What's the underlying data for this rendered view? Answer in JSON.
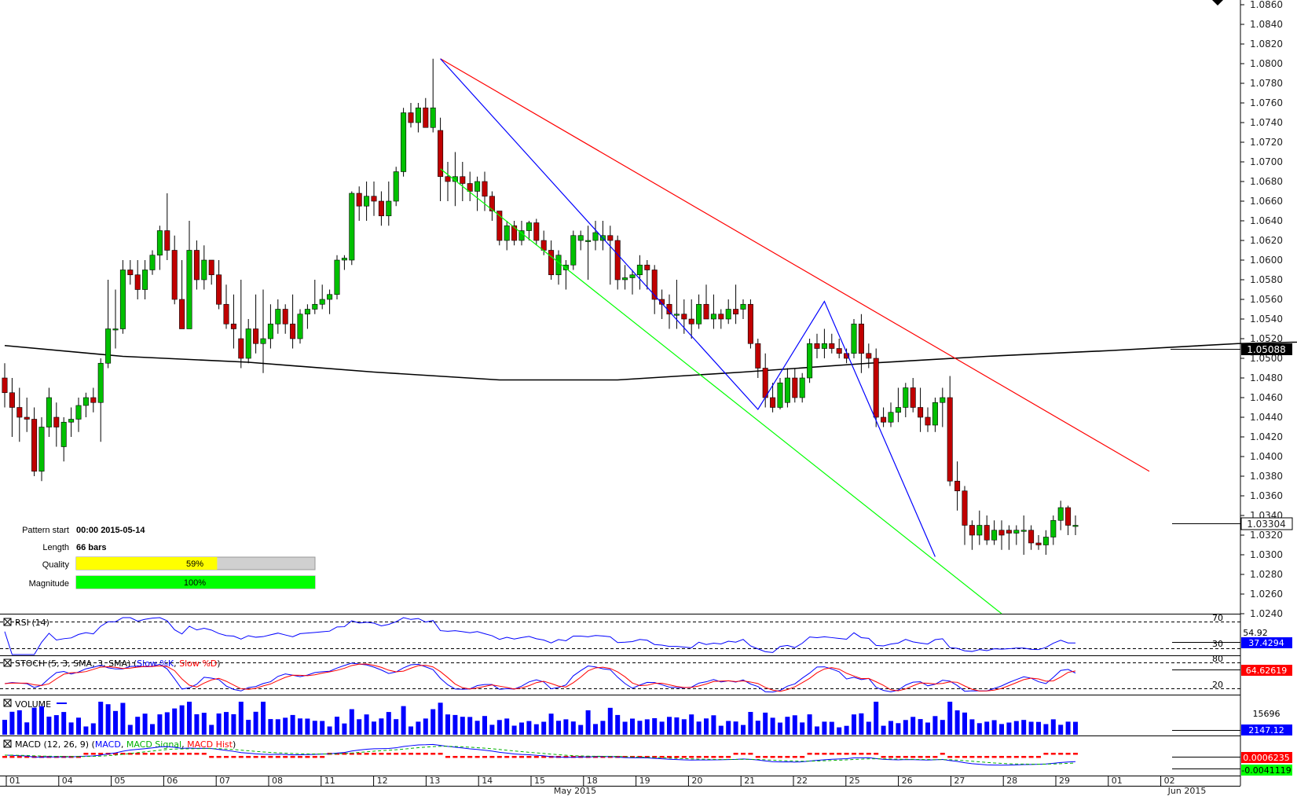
{
  "chart_data": {
    "type": "candlestick",
    "instrument_style": "forex",
    "y_ticks": [
      "1.0860",
      "1.0840",
      "1.0820",
      "1.0800",
      "1.0780",
      "1.0760",
      "1.0740",
      "1.0720",
      "1.0700",
      "1.0680",
      "1.0660",
      "1.0640",
      "1.0620",
      "1.0600",
      "1.0580",
      "1.0560",
      "1.0540",
      "1.0520",
      "1.0500",
      "1.0480",
      "1.0460",
      "1.0440",
      "1.0420",
      "1.0400",
      "1.0380",
      "1.0360",
      "1.0340",
      "1.0320",
      "1.0300",
      "1.0280",
      "1.0260",
      "1.0240"
    ],
    "ylim": [
      1.024,
      1.086
    ],
    "x_labels": [
      "01",
      "04",
      "05",
      "06",
      "07",
      "08",
      "11",
      "12",
      "13",
      "14",
      "15",
      "18",
      "19",
      "20",
      "21",
      "22",
      "25",
      "26",
      "27",
      "28",
      "29",
      "01",
      "02"
    ],
    "month_labels": [
      "May 2015",
      "Jun 2015"
    ],
    "last_price_label": "1.03304",
    "ma_price_label": "1.05088",
    "candles": [
      [
        1.048,
        1.0495,
        1.045,
        1.0465
      ],
      [
        1.0465,
        1.048,
        1.042,
        1.045
      ],
      [
        1.045,
        1.047,
        1.0415,
        1.044
      ],
      [
        1.044,
        1.046,
        1.0425,
        1.0438
      ],
      [
        1.0438,
        1.045,
        1.038,
        1.0385
      ],
      [
        1.0385,
        1.044,
        1.0375,
        1.043
      ],
      [
        1.043,
        1.047,
        1.042,
        1.046
      ],
      [
        1.044,
        1.0455,
        1.041,
        1.043
      ],
      [
        1.041,
        1.044,
        1.0395,
        1.0435
      ],
      [
        1.0435,
        1.045,
        1.042,
        1.0438
      ],
      [
        1.0438,
        1.046,
        1.0425,
        1.0452
      ],
      [
        1.0452,
        1.0465,
        1.044,
        1.046
      ],
      [
        1.046,
        1.047,
        1.0445,
        1.0455
      ],
      [
        1.0455,
        1.05,
        1.0415,
        1.0495
      ],
      [
        1.0495,
        1.058,
        1.049,
        1.053
      ],
      [
        1.053,
        1.057,
        1.051,
        1.053
      ],
      [
        1.053,
        1.06,
        1.0525,
        1.059
      ],
      [
        1.059,
        1.06,
        1.0575,
        1.0585
      ],
      [
        1.0585,
        1.06,
        1.056,
        1.057
      ],
      [
        1.057,
        1.06,
        1.056,
        1.059
      ],
      [
        1.059,
        1.061,
        1.0585,
        1.0605
      ],
      [
        1.0605,
        1.0635,
        1.059,
        1.063
      ],
      [
        1.063,
        1.0668,
        1.06,
        1.061
      ],
      [
        1.061,
        1.0625,
        1.0555,
        1.056
      ],
      [
        1.056,
        1.06,
        1.053,
        1.053
      ],
      [
        1.053,
        1.064,
        1.053,
        1.061
      ],
      [
        1.061,
        1.062,
        1.057,
        1.058
      ],
      [
        1.058,
        1.0615,
        1.057,
        1.06
      ],
      [
        1.06,
        1.06,
        1.0575,
        1.0585
      ],
      [
        1.0585,
        1.06,
        1.055,
        1.0555
      ],
      [
        1.0555,
        1.0575,
        1.053,
        1.0535
      ],
      [
        1.0535,
        1.0565,
        1.051,
        1.053
      ],
      [
        1.052,
        1.058,
        1.049,
        1.05
      ],
      [
        1.05,
        1.054,
        1.0495,
        1.053
      ],
      [
        1.053,
        1.0565,
        1.0505,
        1.0515
      ],
      [
        1.0515,
        1.057,
        1.0485,
        1.052
      ],
      [
        1.052,
        1.0555,
        1.051,
        1.0535
      ],
      [
        1.0535,
        1.056,
        1.0525,
        1.055
      ],
      [
        1.055,
        1.0555,
        1.0525,
        1.0535
      ],
      [
        1.0535,
        1.0565,
        1.051,
        1.052
      ],
      [
        1.052,
        1.055,
        1.0515,
        1.0545
      ],
      [
        1.0545,
        1.0555,
        1.053,
        1.055
      ],
      [
        1.055,
        1.058,
        1.0545,
        1.0555
      ],
      [
        1.0555,
        1.0575,
        1.055,
        1.056
      ],
      [
        1.056,
        1.057,
        1.0545,
        1.0565
      ],
      [
        1.0565,
        1.0605,
        1.056,
        1.06
      ],
      [
        1.06,
        1.0605,
        1.059,
        1.0602
      ],
      [
        1.06,
        1.067,
        1.0595,
        1.0668
      ],
      [
        1.0668,
        1.0675,
        1.064,
        1.0655
      ],
      [
        1.0655,
        1.068,
        1.064,
        1.0665
      ],
      [
        1.0665,
        1.068,
        1.0645,
        1.066
      ],
      [
        1.066,
        1.067,
        1.0635,
        1.0645
      ],
      [
        1.0645,
        1.068,
        1.0635,
        1.066
      ],
      [
        1.066,
        1.0695,
        1.0655,
        1.069
      ],
      [
        1.069,
        1.0755,
        1.0685,
        1.075
      ],
      [
        1.075,
        1.076,
        1.0735,
        1.074
      ],
      [
        1.074,
        1.076,
        1.073,
        1.0755
      ],
      [
        1.0755,
        1.0765,
        1.0735,
        1.0735
      ],
      [
        1.0735,
        1.0805,
        1.073,
        1.0755
      ],
      [
        1.0732,
        1.0745,
        1.066,
        1.0685
      ],
      [
        1.0685,
        1.07,
        1.066,
        1.068
      ],
      [
        1.068,
        1.071,
        1.0655,
        1.0685
      ],
      [
        1.0685,
        1.07,
        1.066,
        1.0678
      ],
      [
        1.0678,
        1.069,
        1.066,
        1.067
      ],
      [
        1.067,
        1.0685,
        1.065,
        1.068
      ],
      [
        1.068,
        1.069,
        1.065,
        1.0665
      ],
      [
        1.0665,
        1.067,
        1.064,
        1.065
      ],
      [
        1.065,
        1.065,
        1.0615,
        1.062
      ],
      [
        1.062,
        1.064,
        1.061,
        1.0635
      ],
      [
        1.0635,
        1.064,
        1.0615,
        1.062
      ],
      [
        1.062,
        1.064,
        1.0615,
        1.063
      ],
      [
        1.063,
        1.064,
        1.062,
        1.0638
      ],
      [
        1.0638,
        1.0642,
        1.0615,
        1.062
      ],
      [
        1.062,
        1.063,
        1.0605,
        1.061
      ],
      [
        1.061,
        1.062,
        1.058,
        1.0585
      ],
      [
        1.0585,
        1.061,
        1.0575,
        1.0605
      ],
      [
        1.059,
        1.06,
        1.057,
        1.0595
      ],
      [
        1.0595,
        1.063,
        1.059,
        1.0625
      ],
      [
        1.062,
        1.063,
        1.061,
        1.0625
      ],
      [
        1.062,
        1.0635,
        1.058,
        1.062
      ],
      [
        1.062,
        1.064,
        1.061,
        1.0628
      ],
      [
        1.062,
        1.064,
        1.061,
        1.0625
      ],
      [
        1.0625,
        1.0635,
        1.0575,
        1.062
      ],
      [
        1.062,
        1.0625,
        1.057,
        1.058
      ],
      [
        1.058,
        1.0595,
        1.057,
        1.0582
      ],
      [
        1.0582,
        1.059,
        1.0565,
        1.0585
      ],
      [
        1.0585,
        1.0605,
        1.057,
        1.0595
      ],
      [
        1.0595,
        1.06,
        1.057,
        1.059
      ],
      [
        1.059,
        1.0595,
        1.0545,
        1.056
      ],
      [
        1.056,
        1.057,
        1.054,
        1.0555
      ],
      [
        1.0555,
        1.0565,
        1.053,
        1.0545
      ],
      [
        1.0545,
        1.058,
        1.053,
        1.0545
      ],
      [
        1.0545,
        1.056,
        1.0525,
        1.054
      ],
      [
        1.054,
        1.056,
        1.052,
        1.0535
      ],
      [
        1.0535,
        1.0565,
        1.053,
        1.0555
      ],
      [
        1.0555,
        1.0575,
        1.054,
        1.054
      ],
      [
        1.054,
        1.0565,
        1.053,
        1.0545
      ],
      [
        1.0545,
        1.055,
        1.053,
        1.054
      ],
      [
        1.054,
        1.056,
        1.0535,
        1.055
      ],
      [
        1.055,
        1.0575,
        1.0535,
        1.0545
      ],
      [
        1.055,
        1.056,
        1.054,
        1.0555
      ],
      [
        1.0555,
        1.056,
        1.051,
        1.0515
      ],
      [
        1.0515,
        1.052,
        1.048,
        1.049
      ],
      [
        1.049,
        1.0505,
        1.045,
        1.046
      ],
      [
        1.046,
        1.0475,
        1.0445,
        1.045
      ],
      [
        1.045,
        1.048,
        1.0448,
        1.0475
      ],
      [
        1.0455,
        1.049,
        1.045,
        1.048
      ],
      [
        1.048,
        1.049,
        1.0455,
        1.046
      ],
      [
        1.046,
        1.0485,
        1.0455,
        1.048
      ],
      [
        1.048,
        1.052,
        1.0475,
        1.0515
      ],
      [
        1.0515,
        1.0525,
        1.05,
        1.051
      ],
      [
        1.051,
        1.053,
        1.05,
        1.0515
      ],
      [
        1.0515,
        1.0525,
        1.0505,
        1.051
      ],
      [
        1.051,
        1.052,
        1.05,
        1.0505
      ],
      [
        1.0505,
        1.051,
        1.0495,
        1.05
      ],
      [
        1.0505,
        1.054,
        1.05,
        1.0535
      ],
      [
        1.0535,
        1.0545,
        1.0485,
        1.0505
      ],
      [
        1.0505,
        1.0515,
        1.049,
        1.05
      ],
      [
        1.05,
        1.051,
        1.043,
        1.044
      ],
      [
        1.044,
        1.045,
        1.043,
        1.0435
      ],
      [
        1.0435,
        1.0455,
        1.043,
        1.0445
      ],
      [
        1.0445,
        1.047,
        1.0435,
        1.045
      ],
      [
        1.045,
        1.0475,
        1.044,
        1.047
      ],
      [
        1.047,
        1.048,
        1.0445,
        1.045
      ],
      [
        1.045,
        1.047,
        1.0425,
        1.044
      ],
      [
        1.044,
        1.045,
        1.0425,
        1.0432
      ],
      [
        1.0432,
        1.046,
        1.0425,
        1.0455
      ],
      [
        1.0455,
        1.047,
        1.043,
        1.046
      ],
      [
        1.046,
        1.0482,
        1.037,
        1.0375
      ],
      [
        1.0375,
        1.0395,
        1.0345,
        1.0365
      ],
      [
        1.0365,
        1.037,
        1.031,
        1.033
      ],
      [
        1.033,
        1.0335,
        1.0305,
        1.032
      ],
      [
        1.032,
        1.0345,
        1.031,
        1.033
      ],
      [
        1.033,
        1.034,
        1.031,
        1.0315
      ],
      [
        1.0315,
        1.0335,
        1.031,
        1.0325
      ],
      [
        1.0325,
        1.0335,
        1.0305,
        1.032
      ],
      [
        1.0325,
        1.033,
        1.0305,
        1.0322
      ],
      [
        1.0322,
        1.033,
        1.031,
        1.0325
      ],
      [
        1.0325,
        1.034,
        1.03,
        1.0325
      ],
      [
        1.0325,
        1.033,
        1.0305,
        1.0312
      ],
      [
        1.0312,
        1.032,
        1.0305,
        1.031
      ],
      [
        1.031,
        1.0325,
        1.03,
        1.0318
      ],
      [
        1.0318,
        1.034,
        1.031,
        1.0335
      ],
      [
        1.0335,
        1.0355,
        1.0325,
        1.0348
      ],
      [
        1.0348,
        1.035,
        1.032,
        1.033
      ],
      [
        1.033,
        1.034,
        1.032,
        1.033
      ]
    ],
    "sma": [
      [
        0,
        1.0513
      ],
      [
        16,
        1.0502
      ],
      [
        33,
        1.0496
      ],
      [
        50,
        1.0486
      ],
      [
        67,
        1.0478
      ],
      [
        83,
        1.0478
      ],
      [
        100,
        1.0486
      ],
      [
        117,
        1.0495
      ],
      [
        133,
        1.0502
      ],
      [
        150,
        1.0508
      ],
      [
        167,
        1.0515
      ],
      [
        183,
        1.0518
      ],
      [
        200,
        1.052
      ],
      [
        217,
        1.0522
      ],
      [
        233,
        1.0522
      ],
      [
        250,
        1.0521
      ],
      [
        267,
        1.0519
      ],
      [
        283,
        1.0516
      ],
      [
        300,
        1.0514
      ]
    ],
    "pattern_lines": {
      "upper": {
        "color": "#ff0000",
        "from": [
          59,
          1.0805
        ],
        "to": [
          155,
          1.0385
        ]
      },
      "lower": {
        "color": "#00ff00",
        "from": [
          59,
          1.0693
        ],
        "to": [
          135,
          1.024
        ]
      },
      "zigzag": {
        "color": "#0000ff",
        "points": [
          [
            59,
            1.0805
          ],
          [
            102,
            1.0448
          ],
          [
            111,
            1.0558
          ],
          [
            126,
            1.0298
          ]
        ]
      }
    },
    "pattern_info": {
      "labels": [
        "Pattern start",
        "Length",
        "Quality",
        "Magnitude"
      ],
      "pattern_start": "00:00 2015-05-14",
      "length": "66 bars",
      "quality_pct": 59,
      "quality_text": "59%",
      "magnitude_pct": 100,
      "magnitude_text": "100%"
    },
    "indicators": {
      "rsi": {
        "title": "RSI (14)",
        "level_high": "70",
        "level_low": "30",
        "mid_label": "54.92",
        "value_label": "37.4294",
        "color": "#0000ff"
      },
      "stoch": {
        "title": "STOCH (5, 3, SMA, 3, SMA)",
        "k_label": "Slow %K",
        "d_label": "Slow %D",
        "level_high": "80",
        "level_low": "20",
        "value_label": "64.62619",
        "k_color": "#0000ff",
        "d_color": "#ff0000"
      },
      "volume": {
        "title": "VOLUME",
        "max_label": "15696",
        "value_label": "2147.12",
        "color": "#0000ff"
      },
      "macd": {
        "title": "MACD (12, 26, 9)",
        "line_label": "MACD",
        "signal_label": "MACD Signal",
        "hist_label": "MACD Hist",
        "value1_label": "0.0006235",
        "value2_label": "-0.0041119"
      }
    },
    "colors": {
      "bull": "#00c000",
      "bear": "#c00000",
      "ma": "#000000",
      "value_box": "#0000ff"
    }
  }
}
